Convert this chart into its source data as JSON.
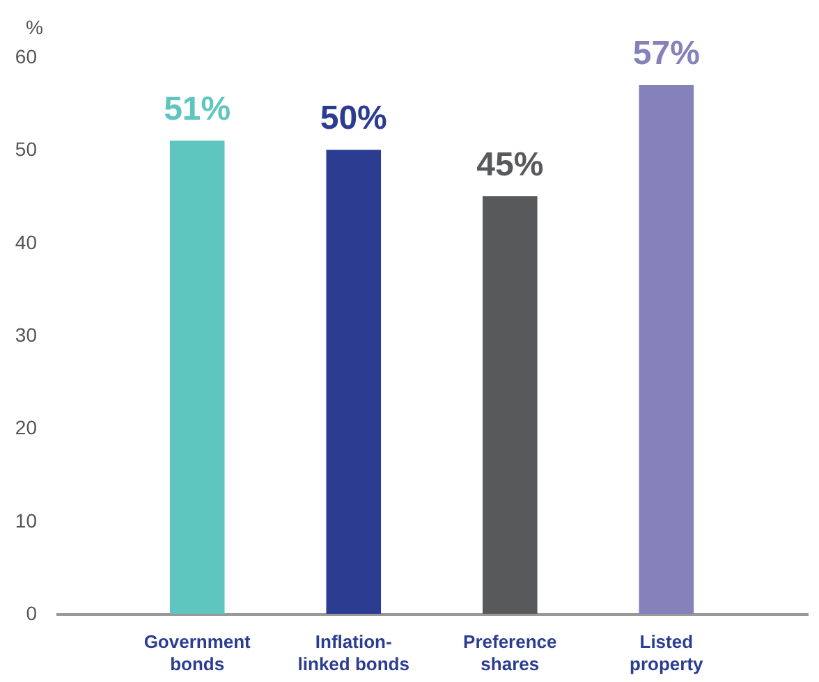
{
  "chart_data": {
    "type": "bar",
    "ylabel": "%",
    "categories": [
      "Government bonds",
      "Inflation-linked bonds",
      "Preference shares",
      "Listed property"
    ],
    "values": [
      51,
      50,
      45,
      57
    ],
    "colors": [
      "#5fc6bf",
      "#2b3c91",
      "#58595b",
      "#8481bb"
    ],
    "ylim": [
      0,
      60
    ],
    "yticks": [
      0,
      10,
      20,
      30,
      40,
      50,
      60
    ],
    "value_labels": [
      "51%",
      "50%",
      "45%",
      "57%"
    ],
    "grid": false
  }
}
